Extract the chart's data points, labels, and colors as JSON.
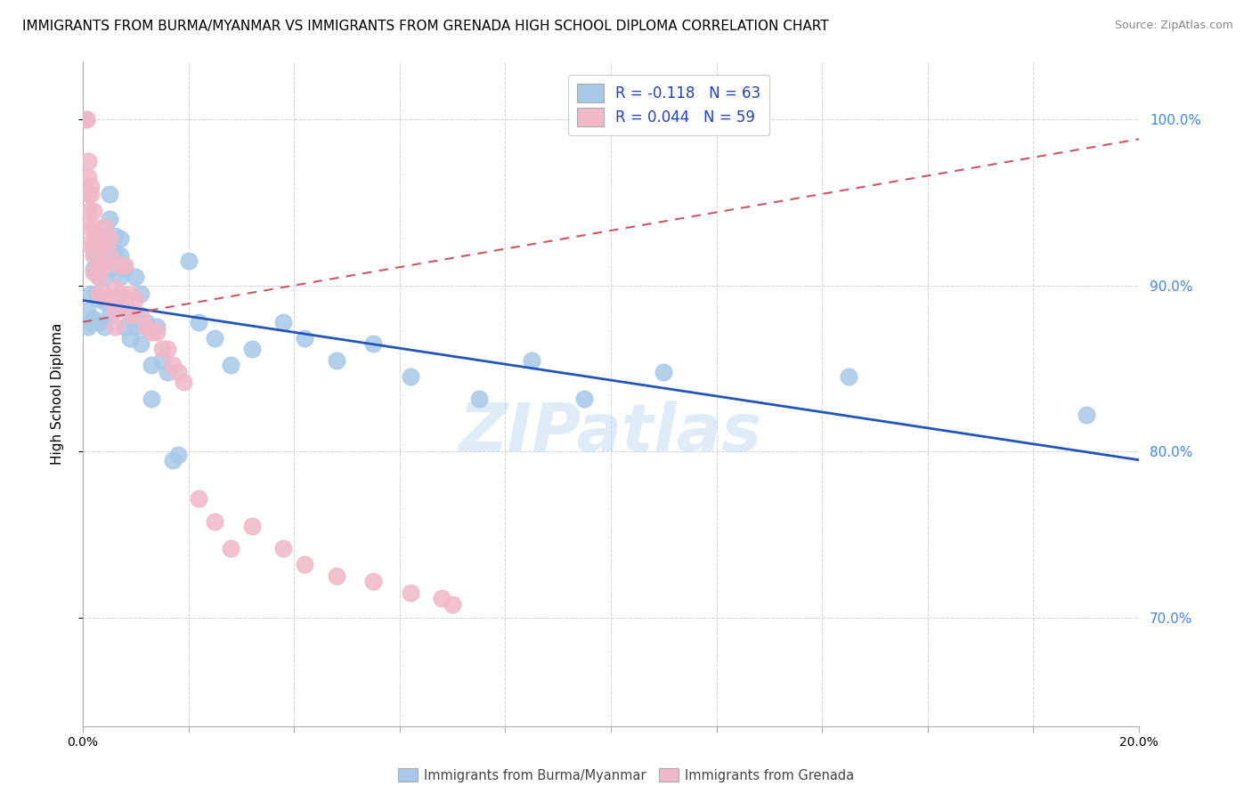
{
  "title": "IMMIGRANTS FROM BURMA/MYANMAR VS IMMIGRANTS FROM GRENADA HIGH SCHOOL DIPLOMA CORRELATION CHART",
  "source": "Source: ZipAtlas.com",
  "ylabel": "High School Diploma",
  "right_ytick_vals": [
    1.0,
    0.9,
    0.8,
    0.7
  ],
  "legend_blue_label": "R = -0.118   N = 63",
  "legend_pink_label": "R = 0.044   N = 59",
  "watermark": "ZIPatlas",
  "blue_color": "#a8c8e8",
  "pink_color": "#f0b8c8",
  "blue_line_color": "#2255bb",
  "pink_line_color": "#cc5566",
  "legend_text_color": "#2244bb",
  "xlim": [
    0.0,
    0.2
  ],
  "ylim": [
    0.635,
    1.035
  ],
  "blue_scatter_x": [
    0.0008,
    0.001,
    0.0015,
    0.0015,
    0.002,
    0.002,
    0.002,
    0.0025,
    0.0025,
    0.003,
    0.003,
    0.003,
    0.003,
    0.0035,
    0.004,
    0.004,
    0.004,
    0.004,
    0.004,
    0.005,
    0.005,
    0.005,
    0.005,
    0.006,
    0.006,
    0.006,
    0.007,
    0.007,
    0.007,
    0.008,
    0.008,
    0.008,
    0.009,
    0.009,
    0.01,
    0.01,
    0.011,
    0.011,
    0.011,
    0.012,
    0.013,
    0.013,
    0.014,
    0.015,
    0.016,
    0.017,
    0.018,
    0.02,
    0.022,
    0.025,
    0.028,
    0.032,
    0.038,
    0.042,
    0.048,
    0.055,
    0.062,
    0.075,
    0.085,
    0.095,
    0.11,
    0.145,
    0.19
  ],
  "blue_scatter_y": [
    0.885,
    0.875,
    0.895,
    0.878,
    0.92,
    0.91,
    0.88,
    0.93,
    0.895,
    0.925,
    0.905,
    0.892,
    0.878,
    0.915,
    0.93,
    0.92,
    0.905,
    0.89,
    0.875,
    0.955,
    0.94,
    0.91,
    0.882,
    0.93,
    0.92,
    0.885,
    0.928,
    0.918,
    0.905,
    0.91,
    0.892,
    0.875,
    0.885,
    0.868,
    0.905,
    0.875,
    0.895,
    0.878,
    0.865,
    0.878,
    0.852,
    0.832,
    0.875,
    0.855,
    0.848,
    0.795,
    0.798,
    0.915,
    0.878,
    0.868,
    0.852,
    0.862,
    0.878,
    0.868,
    0.855,
    0.865,
    0.845,
    0.832,
    0.855,
    0.832,
    0.848,
    0.845,
    0.822
  ],
  "pink_scatter_x": [
    0.0006,
    0.0006,
    0.001,
    0.001,
    0.001,
    0.001,
    0.001,
    0.001,
    0.0015,
    0.0015,
    0.002,
    0.002,
    0.002,
    0.002,
    0.002,
    0.0025,
    0.003,
    0.003,
    0.003,
    0.003,
    0.003,
    0.0035,
    0.004,
    0.004,
    0.004,
    0.004,
    0.005,
    0.005,
    0.005,
    0.006,
    0.006,
    0.006,
    0.007,
    0.007,
    0.008,
    0.008,
    0.009,
    0.009,
    0.01,
    0.011,
    0.012,
    0.013,
    0.014,
    0.015,
    0.016,
    0.017,
    0.018,
    0.019,
    0.022,
    0.025,
    0.028,
    0.032,
    0.038,
    0.042,
    0.048,
    0.055,
    0.062,
    0.068,
    0.07
  ],
  "pink_scatter_y": [
    1.0,
    1.0,
    0.975,
    0.965,
    0.955,
    0.945,
    0.935,
    0.925,
    0.96,
    0.955,
    0.945,
    0.935,
    0.925,
    0.918,
    0.908,
    0.932,
    0.93,
    0.922,
    0.912,
    0.905,
    0.895,
    0.912,
    0.935,
    0.925,
    0.912,
    0.895,
    0.928,
    0.918,
    0.892,
    0.898,
    0.885,
    0.875,
    0.912,
    0.895,
    0.912,
    0.892,
    0.895,
    0.882,
    0.892,
    0.882,
    0.875,
    0.872,
    0.872,
    0.862,
    0.862,
    0.852,
    0.848,
    0.842,
    0.772,
    0.758,
    0.742,
    0.755,
    0.742,
    0.732,
    0.725,
    0.722,
    0.715,
    0.712,
    0.708
  ],
  "blue_line_y_intercept": 0.891,
  "blue_line_slope": -0.48,
  "pink_line_y_intercept": 0.878,
  "pink_line_slope": 0.55
}
